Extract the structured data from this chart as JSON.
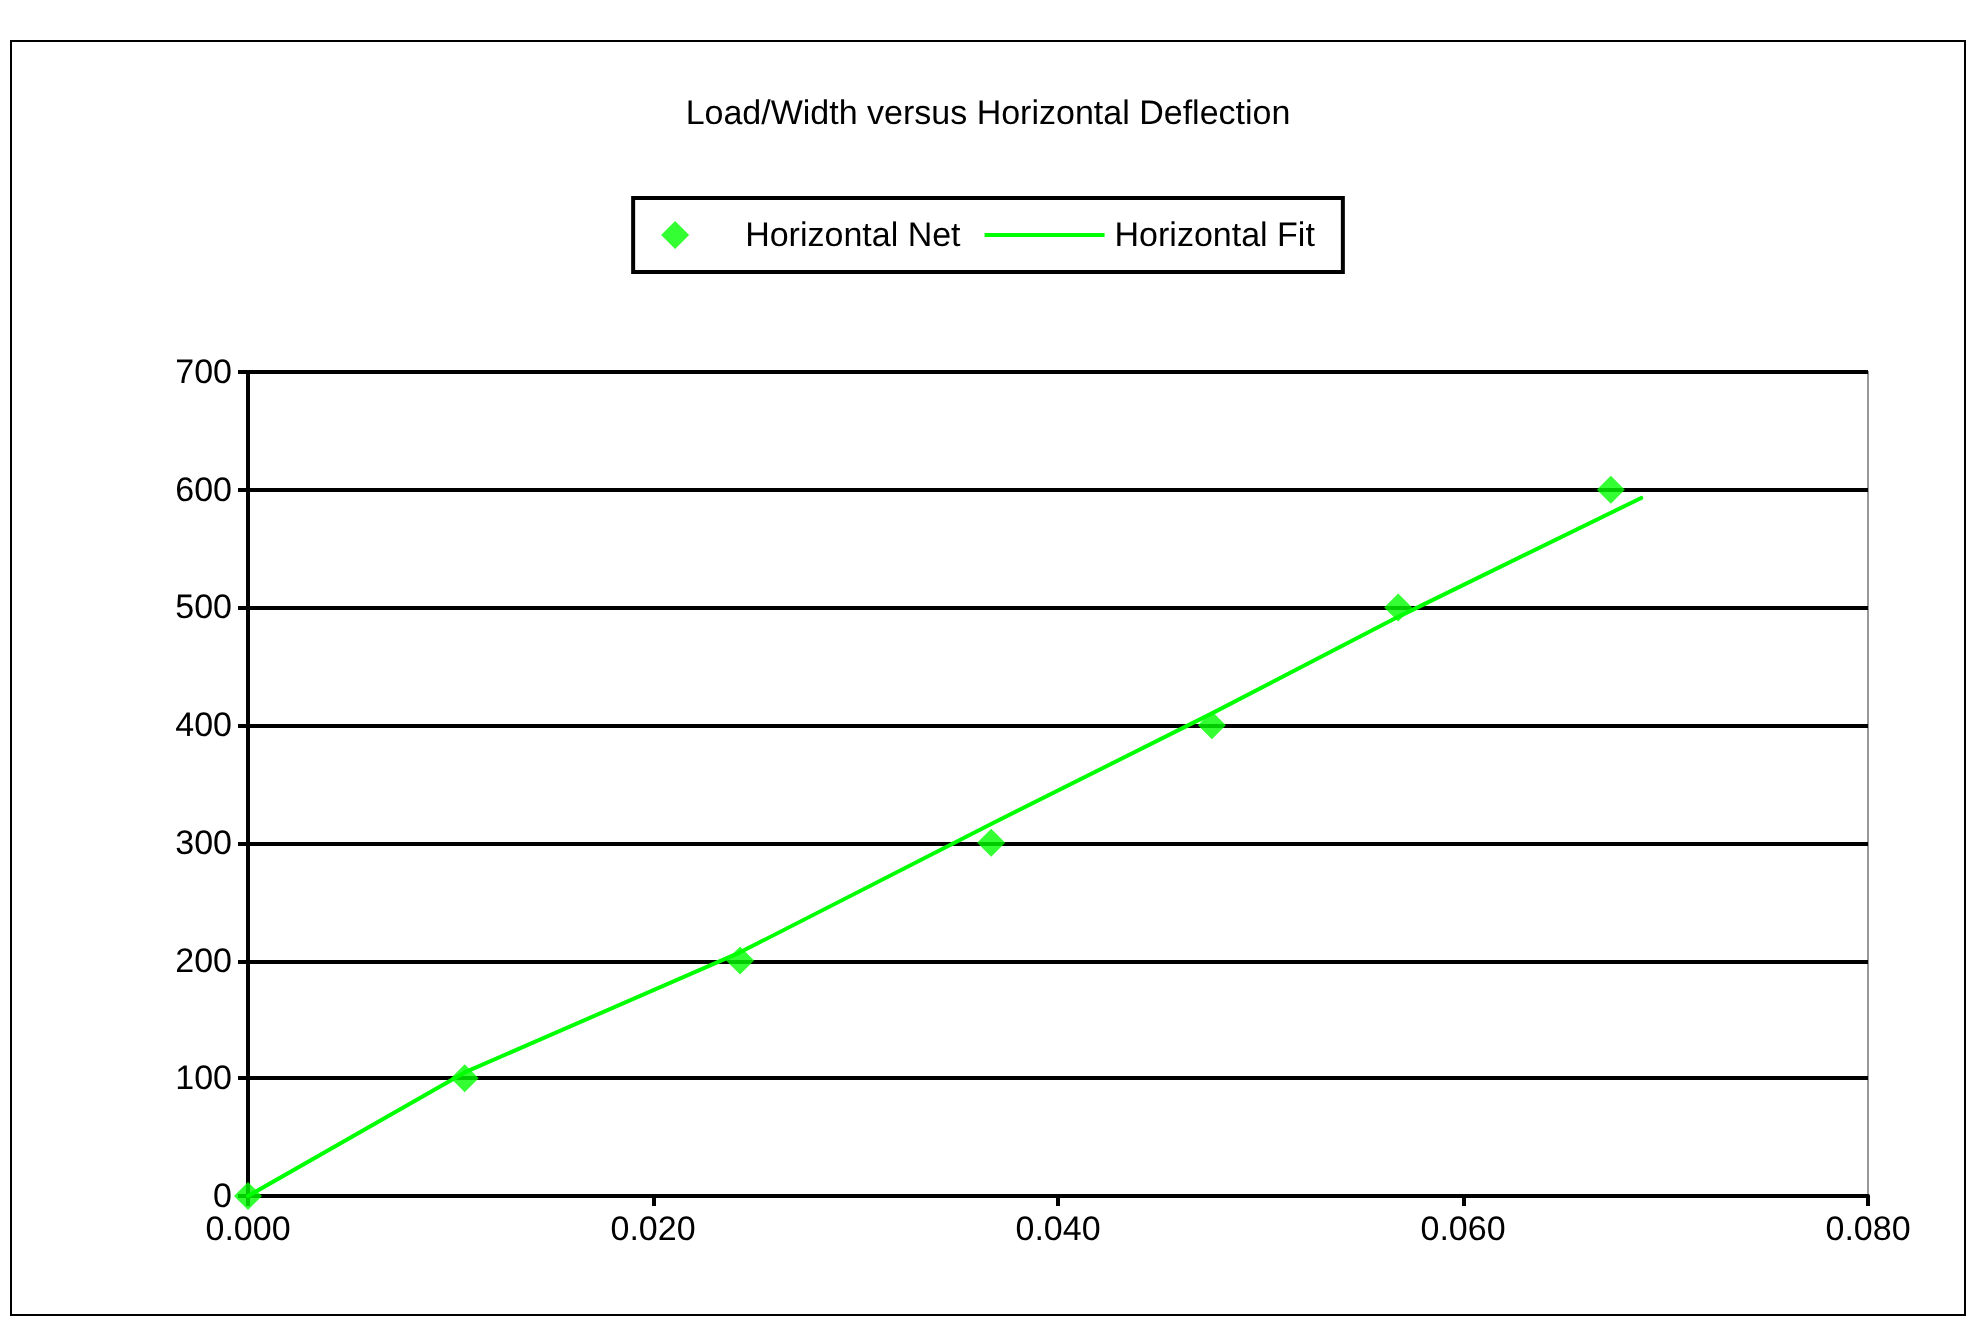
{
  "chart_data": {
    "type": "scatter",
    "title": "Load/Width versus Horizontal Deflection",
    "series": [
      {
        "name": "Horizontal Net",
        "type": "scatter",
        "color": "#00ff00",
        "marker": "diamond",
        "x": [
          0,
          0.0107,
          0.0243,
          0.0367,
          0.0476,
          0.0568,
          0.0673
        ],
        "values": [
          0,
          100,
          200,
          300,
          400,
          500,
          600
        ]
      },
      {
        "name": "Horizontal Fit",
        "type": "line",
        "color": "#00ff00",
        "marker": "none",
        "line_style": "solid",
        "x": [
          0,
          0.0107,
          0.0243,
          0.0367,
          0.0476,
          0.0568,
          0.0688
        ],
        "values": [
          0,
          105,
          207,
          316,
          410,
          492,
          593
        ]
      }
    ],
    "xlim": [
      0,
      0.08
    ],
    "xticks": [
      {
        "value": 0,
        "label": "0.000"
      },
      {
        "value": 0.02,
        "label": "0.020"
      },
      {
        "value": 0.04,
        "label": "0.040"
      },
      {
        "value": 0.06,
        "label": "0.060"
      },
      {
        "value": 0.08,
        "label": "0.080"
      }
    ],
    "ylim": [
      0,
      700
    ],
    "yticks": [
      0,
      100,
      200,
      300,
      400,
      500,
      600,
      700
    ],
    "grid": "y",
    "legend": "top"
  }
}
